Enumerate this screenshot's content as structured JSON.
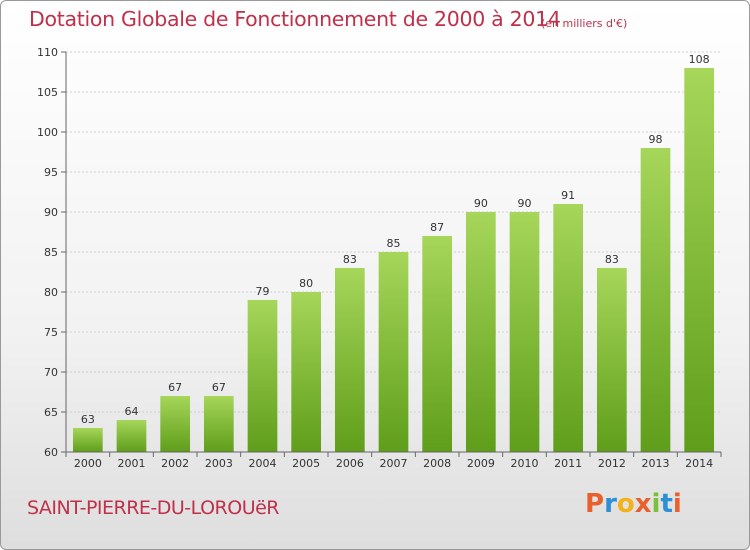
{
  "title": "Dotation Globale de Fonctionnement de 2000 à 2014",
  "subtitle": "(en milliers d'€)",
  "commune": "SAINT-PIERRE-DU-LOROUëR",
  "logo": {
    "text": "Proxiti",
    "colors": [
      "#e8612c",
      "#2d8fd6",
      "#f3b21a",
      "#e8612c",
      "#7bbf3a",
      "#2d8fd6",
      "#e8612c"
    ]
  },
  "colors": {
    "title": "#c0304a",
    "bar_top": "#a6d65a",
    "bar_bottom": "#5f9e1a",
    "grid": "#d0d0d0",
    "axis": "#666666"
  },
  "chart_data": {
    "type": "bar",
    "title": "Dotation Globale de Fonctionnement de 2000 à 2014",
    "subtitle": "(en milliers d'€)",
    "xlabel": "",
    "ylabel": "",
    "categories": [
      "2000",
      "2001",
      "2002",
      "2003",
      "2004",
      "2005",
      "2006",
      "2007",
      "2008",
      "2009",
      "2010",
      "2011",
      "2012",
      "2013",
      "2014"
    ],
    "values": [
      63,
      64,
      67,
      67,
      79,
      80,
      83,
      85,
      87,
      90,
      90,
      91,
      83,
      98,
      108
    ],
    "ylim": [
      60,
      110
    ],
    "yticks": [
      60,
      65,
      70,
      75,
      80,
      85,
      90,
      95,
      100,
      105,
      110
    ],
    "grid": true,
    "data_labels": true
  }
}
